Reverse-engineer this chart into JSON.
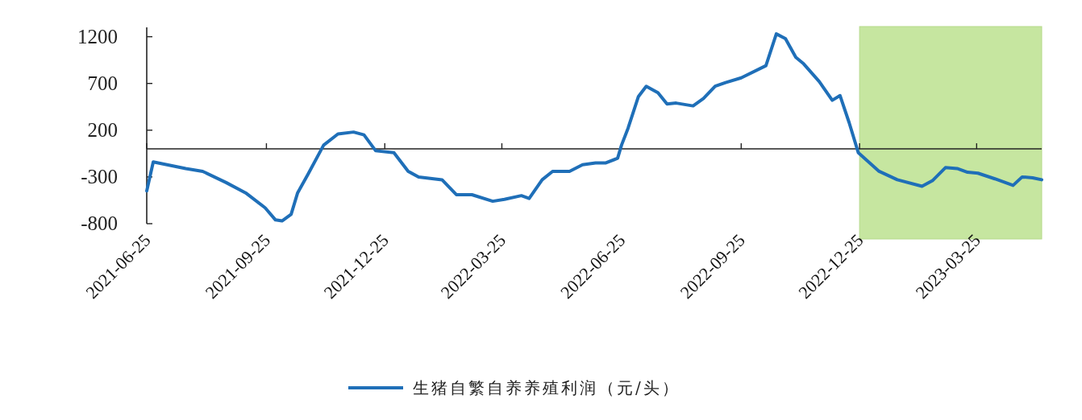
{
  "chart_data": {
    "type": "line",
    "xlim": [
      "2021-06-25",
      "2023-05-14"
    ],
    "ylim": [
      -800,
      1300
    ],
    "yticks": [
      -800,
      -300,
      200,
      700,
      1200
    ],
    "xticks": [
      {
        "value": "2021-06-25",
        "label": "2021-06-25"
      },
      {
        "value": "2021-09-25",
        "label": "2021-09-25"
      },
      {
        "value": "2021-12-25",
        "label": "2021-12-25"
      },
      {
        "value": "2022-03-25",
        "label": "2022-03-25"
      },
      {
        "value": "2022-06-25",
        "label": "2022-06-25"
      },
      {
        "value": "2022-09-25",
        "label": "2022-09-25"
      },
      {
        "value": "2022-12-25",
        "label": "2022-12-25"
      },
      {
        "value": "2023-03-25",
        "label": "2023-03-25"
      }
    ],
    "legend": "bottom",
    "bands": [
      {
        "axis": "x",
        "from": "2022-12-25",
        "to": "2023-05-14",
        "color": "#c6e6a0"
      }
    ],
    "x": [
      "2021-06-25",
      "2021-06-30",
      "2021-07-25",
      "2021-08-07",
      "2021-08-25",
      "2021-09-09",
      "2021-09-24",
      "2021-10-02",
      "2021-10-07",
      "2021-10-14",
      "2021-10-19",
      "2021-10-27",
      "2021-11-08",
      "2021-11-19",
      "2021-12-01",
      "2021-12-09",
      "2021-12-18",
      "2022-01-01",
      "2022-01-12",
      "2022-01-20",
      "2022-02-07",
      "2022-02-18",
      "2022-03-02",
      "2022-03-18",
      "2022-03-27",
      "2022-04-09",
      "2022-04-15",
      "2022-04-25",
      "2022-05-03",
      "2022-05-16",
      "2022-05-26",
      "2022-06-05",
      "2022-06-13",
      "2022-06-22",
      "2022-06-25",
      "2022-06-30",
      "2022-07-08",
      "2022-07-14",
      "2022-07-23",
      "2022-07-30",
      "2022-08-06",
      "2022-08-19",
      "2022-08-27",
      "2022-09-05",
      "2022-09-13",
      "2022-09-25",
      "2022-10-14",
      "2022-10-22",
      "2022-10-29",
      "2022-11-06",
      "2022-11-12",
      "2022-11-24",
      "2022-12-04",
      "2022-12-10",
      "2022-12-17",
      "2022-12-24",
      "2023-01-09",
      "2023-01-23",
      "2023-02-11",
      "2023-02-19",
      "2023-03-01",
      "2023-03-10",
      "2023-03-18",
      "2023-03-26",
      "2023-04-08",
      "2023-04-22",
      "2023-04-29",
      "2023-05-07",
      "2023-05-14"
    ],
    "series": [
      {
        "name": "生猪自繁自养养殖利润（元/头）",
        "color": "#1f6fb8",
        "values": [
          -450,
          -140,
          -210,
          -240,
          -360,
          -470,
          -630,
          -760,
          -770,
          -700,
          -470,
          -270,
          40,
          160,
          180,
          150,
          -20,
          -40,
          -240,
          -300,
          -330,
          -490,
          -490,
          -560,
          -540,
          -500,
          -530,
          -330,
          -240,
          -240,
          -170,
          -150,
          -150,
          -100,
          40,
          220,
          560,
          670,
          600,
          480,
          490,
          460,
          540,
          670,
          710,
          760,
          890,
          1230,
          1180,
          980,
          910,
          720,
          520,
          570,
          280,
          -40,
          -240,
          -330,
          -400,
          -340,
          -200,
          -210,
          -250,
          -260,
          -320,
          -390,
          -300,
          -310,
          -330
        ]
      }
    ]
  }
}
